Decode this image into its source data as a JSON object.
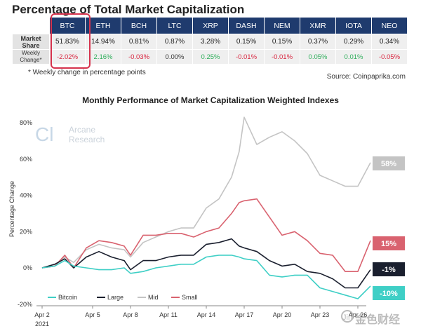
{
  "header": {
    "title": "Percentage of Total Market Capitalization",
    "row_market_share_label": "Market Share",
    "row_weekly_change_label": "Weekly Change*",
    "coins": [
      {
        "name": "BTC",
        "share": "51.83%",
        "change": "-2.02%",
        "trend": "neg"
      },
      {
        "name": "ETH",
        "share": "14.94%",
        "change": "2.16%",
        "trend": "pos"
      },
      {
        "name": "BCH",
        "share": "0.81%",
        "change": "-0.03%",
        "trend": "neg"
      },
      {
        "name": "LTC",
        "share": "0.87%",
        "change": "0.00%",
        "trend": "zero"
      },
      {
        "name": "XRP",
        "share": "3.28%",
        "change": "0.25%",
        "trend": "pos"
      },
      {
        "name": "DASH",
        "share": "0.15%",
        "change": "-0.01%",
        "trend": "neg"
      },
      {
        "name": "NEM",
        "share": "0.15%",
        "change": "-0.01%",
        "trend": "neg"
      },
      {
        "name": "XMR",
        "share": "0.37%",
        "change": "0.05%",
        "trend": "pos"
      },
      {
        "name": "IOTA",
        "share": "0.29%",
        "change": "0.01%",
        "trend": "pos"
      },
      {
        "name": "NEO",
        "share": "0.34%",
        "change": "-0.05%",
        "trend": "neg"
      }
    ],
    "footnote": "* Weekly change in percentage points",
    "source": "Source: Coinpaprika.com"
  },
  "watermark": {
    "logo": "Cl",
    "line1": "Arcane",
    "line2": "Research",
    "bottom_logo": "金色财经",
    "bottom_mark": "Jin"
  },
  "colors": {
    "header_bg": "#1f3b6e",
    "bitcoin": "#3fcfc6",
    "large": "#1a1f2e",
    "mid": "#c4c4c4",
    "small": "#d9626f",
    "highlight": "#d6334d"
  },
  "chart_data": {
    "type": "line",
    "title": "Monthly Performance of Market Capitalization Weighted Indexes",
    "xlabel": "",
    "ylabel": "Percentage Change",
    "ylim": [
      -20,
      85
    ],
    "yticks": [
      -20,
      0,
      20,
      40,
      60,
      80
    ],
    "ytick_labels": [
      "-20%",
      "0%",
      "20%",
      "40%",
      "60%",
      "80%"
    ],
    "xlim": [
      0,
      29
    ],
    "xticks": [
      0,
      4,
      7,
      10,
      13,
      16,
      19,
      22,
      25
    ],
    "xtick_labels": [
      "Apr 2",
      "Apr 5",
      "Apr 8",
      "Apr 11",
      "Apr 14",
      "Apr 17",
      "Apr 20",
      "Apr 23",
      "Apr 26"
    ],
    "xtick_sub": "2021",
    "series": [
      {
        "name": "Bitcoin",
        "color": "#3fcfc6",
        "end_label": "-10%",
        "x": [
          0,
          1,
          1.8,
          2.5,
          3.5,
          4.5,
          5.5,
          6.5,
          7,
          8,
          9,
          10,
          11,
          12,
          13,
          14,
          15,
          15.6,
          16,
          17,
          18,
          19,
          20,
          21,
          22,
          23,
          24,
          25,
          26
        ],
        "values": [
          0,
          1,
          4,
          1,
          0,
          -1,
          -1,
          0,
          -3,
          -2,
          0,
          1,
          2,
          2,
          6,
          7,
          7,
          6,
          5,
          4,
          -4,
          -5,
          -4,
          -4,
          -11,
          -13,
          -15,
          -17,
          -10
        ]
      },
      {
        "name": "Large",
        "color": "#1a1f2e",
        "end_label": "-1%",
        "x": [
          0,
          1,
          1.8,
          2.5,
          3.5,
          4.5,
          5.5,
          6.5,
          7,
          8,
          9,
          10,
          11,
          12,
          13,
          14,
          15,
          15.6,
          16,
          17,
          18,
          19,
          20,
          21,
          22,
          23,
          24,
          25,
          26
        ],
        "values": [
          0,
          2,
          5,
          0,
          6,
          9,
          6,
          4,
          -1,
          4,
          4,
          6,
          7,
          7,
          13,
          14,
          16,
          12,
          11,
          9,
          4,
          1,
          2,
          -2,
          -3,
          -6,
          -11,
          -11,
          -1
        ]
      },
      {
        "name": "Mid",
        "color": "#c4c4c4",
        "end_label": "58%",
        "x": [
          0,
          1,
          1.8,
          2.5,
          3.5,
          4.5,
          5.5,
          6.5,
          7,
          8,
          9,
          10,
          11,
          12,
          13,
          14,
          15,
          15.6,
          16,
          17,
          18,
          19,
          20,
          21,
          22,
          23,
          24,
          25,
          26
        ],
        "values": [
          0,
          1,
          6,
          3,
          10,
          13,
          11,
          10,
          6,
          14,
          17,
          20,
          22,
          22,
          33,
          38,
          50,
          64,
          83,
          68,
          72,
          75,
          70,
          63,
          51,
          48,
          45,
          45,
          58
        ]
      },
      {
        "name": "Small",
        "color": "#d9626f",
        "end_label": "15%",
        "x": [
          0,
          1,
          1.8,
          2.5,
          3.5,
          4.5,
          5.5,
          6.5,
          7,
          8,
          9,
          10,
          11,
          12,
          13,
          14,
          15,
          15.6,
          16,
          17,
          18,
          19,
          20,
          21,
          22,
          23,
          24,
          25,
          26
        ],
        "values": [
          0,
          1,
          7,
          0,
          11,
          15,
          14,
          12,
          7,
          18,
          18,
          19,
          19,
          17,
          20,
          22,
          30,
          36,
          37,
          38,
          28,
          18,
          20,
          15,
          8,
          7,
          -2,
          -2,
          15
        ]
      }
    ]
  }
}
